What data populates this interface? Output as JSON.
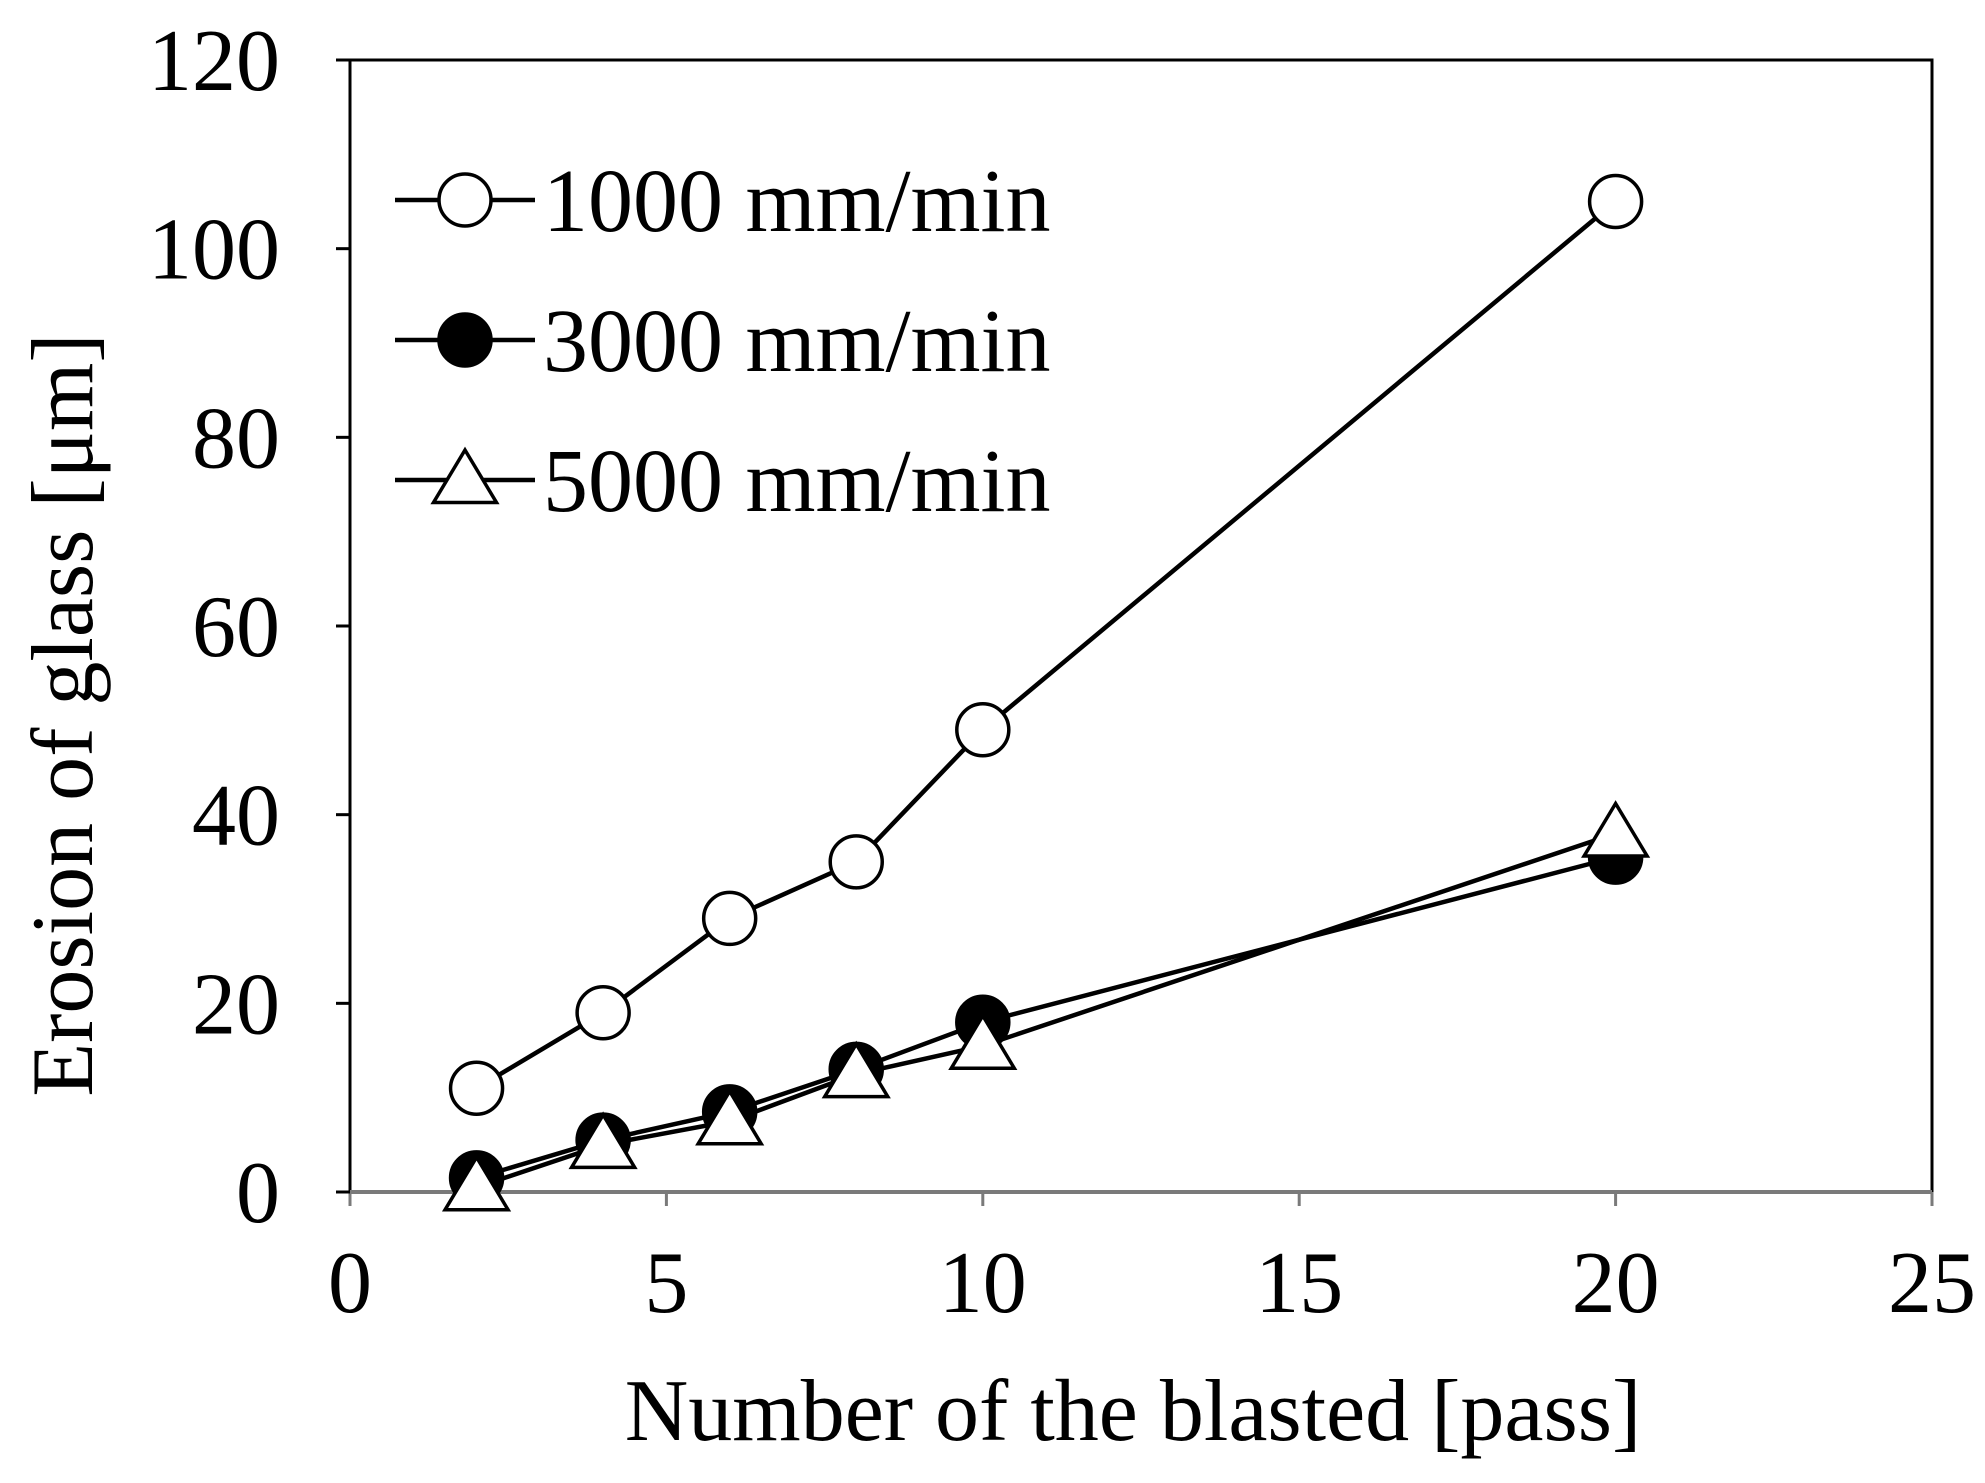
{
  "chart_data": {
    "type": "line",
    "title": "",
    "xlabel": "Number of the blasted [pass]",
    "ylabel": "Erosion of glass [μm]",
    "xlim": [
      0,
      25
    ],
    "ylim": [
      0,
      120
    ],
    "xticks": [
      0,
      5,
      10,
      15,
      20,
      25
    ],
    "yticks": [
      0,
      20,
      40,
      60,
      80,
      100,
      120
    ],
    "grid": false,
    "legend_position": "top-left",
    "series": [
      {
        "name": "1000 mm/min",
        "marker": "open-circle",
        "x": [
          2,
          4,
          6,
          8,
          10,
          20
        ],
        "y": [
          11,
          19,
          29,
          35,
          49,
          105
        ]
      },
      {
        "name": "3000 mm/min",
        "marker": "filled-circle",
        "x": [
          2,
          4,
          6,
          8,
          10,
          20
        ],
        "y": [
          1.5,
          5.5,
          8.5,
          13,
          18,
          35.5
        ]
      },
      {
        "name": "5000 mm/min",
        "marker": "open-triangle",
        "x": [
          2,
          4,
          6,
          8,
          10,
          20
        ],
        "y": [
          0.5,
          5,
          7.5,
          12.5,
          15.5,
          38
        ]
      }
    ]
  }
}
